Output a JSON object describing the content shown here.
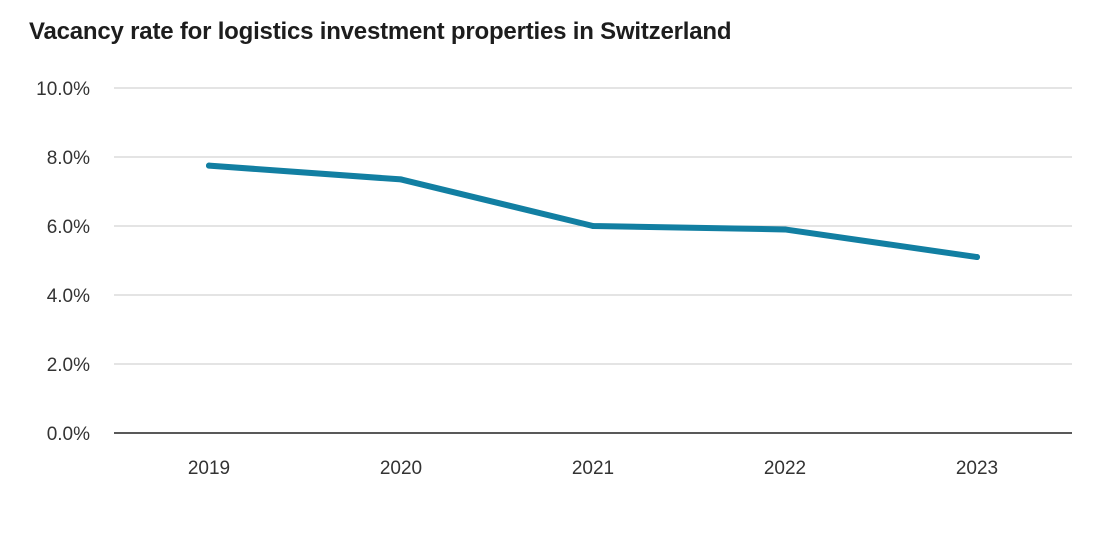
{
  "chart_data": {
    "type": "line",
    "title": "Vacancy rate for logistics investment properties in Switzerland",
    "xlabel": "",
    "ylabel": "",
    "categories": [
      "2019",
      "2020",
      "2021",
      "2022",
      "2023"
    ],
    "series": [
      {
        "values": [
          7.75,
          7.35,
          6.0,
          5.9,
          5.1
        ],
        "color": "#127fa2"
      }
    ],
    "ylim": [
      0,
      10
    ],
    "y_ticks": [
      0,
      2,
      4,
      6,
      8,
      10
    ],
    "y_tick_labels": [
      "0.0%",
      "2.0%",
      "4.0%",
      "6.0%",
      "8.0%",
      "10.0%"
    ],
    "grid": true,
    "legend": "none",
    "colors": {
      "line": "#127fa2",
      "grid": "#c8c8c8",
      "baseline": "#222222"
    }
  }
}
